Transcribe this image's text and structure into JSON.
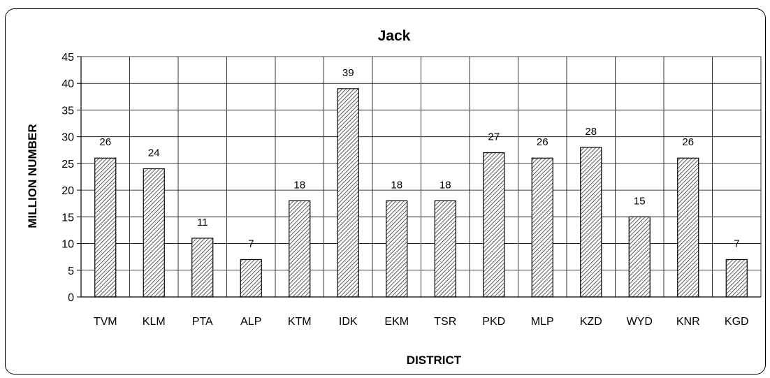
{
  "chart_data": {
    "type": "bar",
    "title": "Jack",
    "xlabel": "DISTRICT",
    "ylabel": "MILLION NUMBER",
    "categories": [
      "TVM",
      "KLM",
      "PTA",
      "ALP",
      "KTM",
      "IDK",
      "EKM",
      "TSR",
      "PKD",
      "MLP",
      "KZD",
      "WYD",
      "KNR",
      "KGD"
    ],
    "values": [
      26,
      24,
      11,
      7,
      18,
      39,
      18,
      18,
      27,
      26,
      28,
      15,
      26,
      7
    ],
    "ylim": [
      0,
      45
    ],
    "yticks": [
      0,
      5,
      10,
      15,
      20,
      25,
      30,
      35,
      40,
      45
    ],
    "grid": true,
    "legend": "none",
    "bar_pattern": "diagonal-hatch",
    "colors": {
      "bar_fill": "#ffffff",
      "hatch": "#333333",
      "stroke": "#000000",
      "grid": "#000000"
    }
  }
}
